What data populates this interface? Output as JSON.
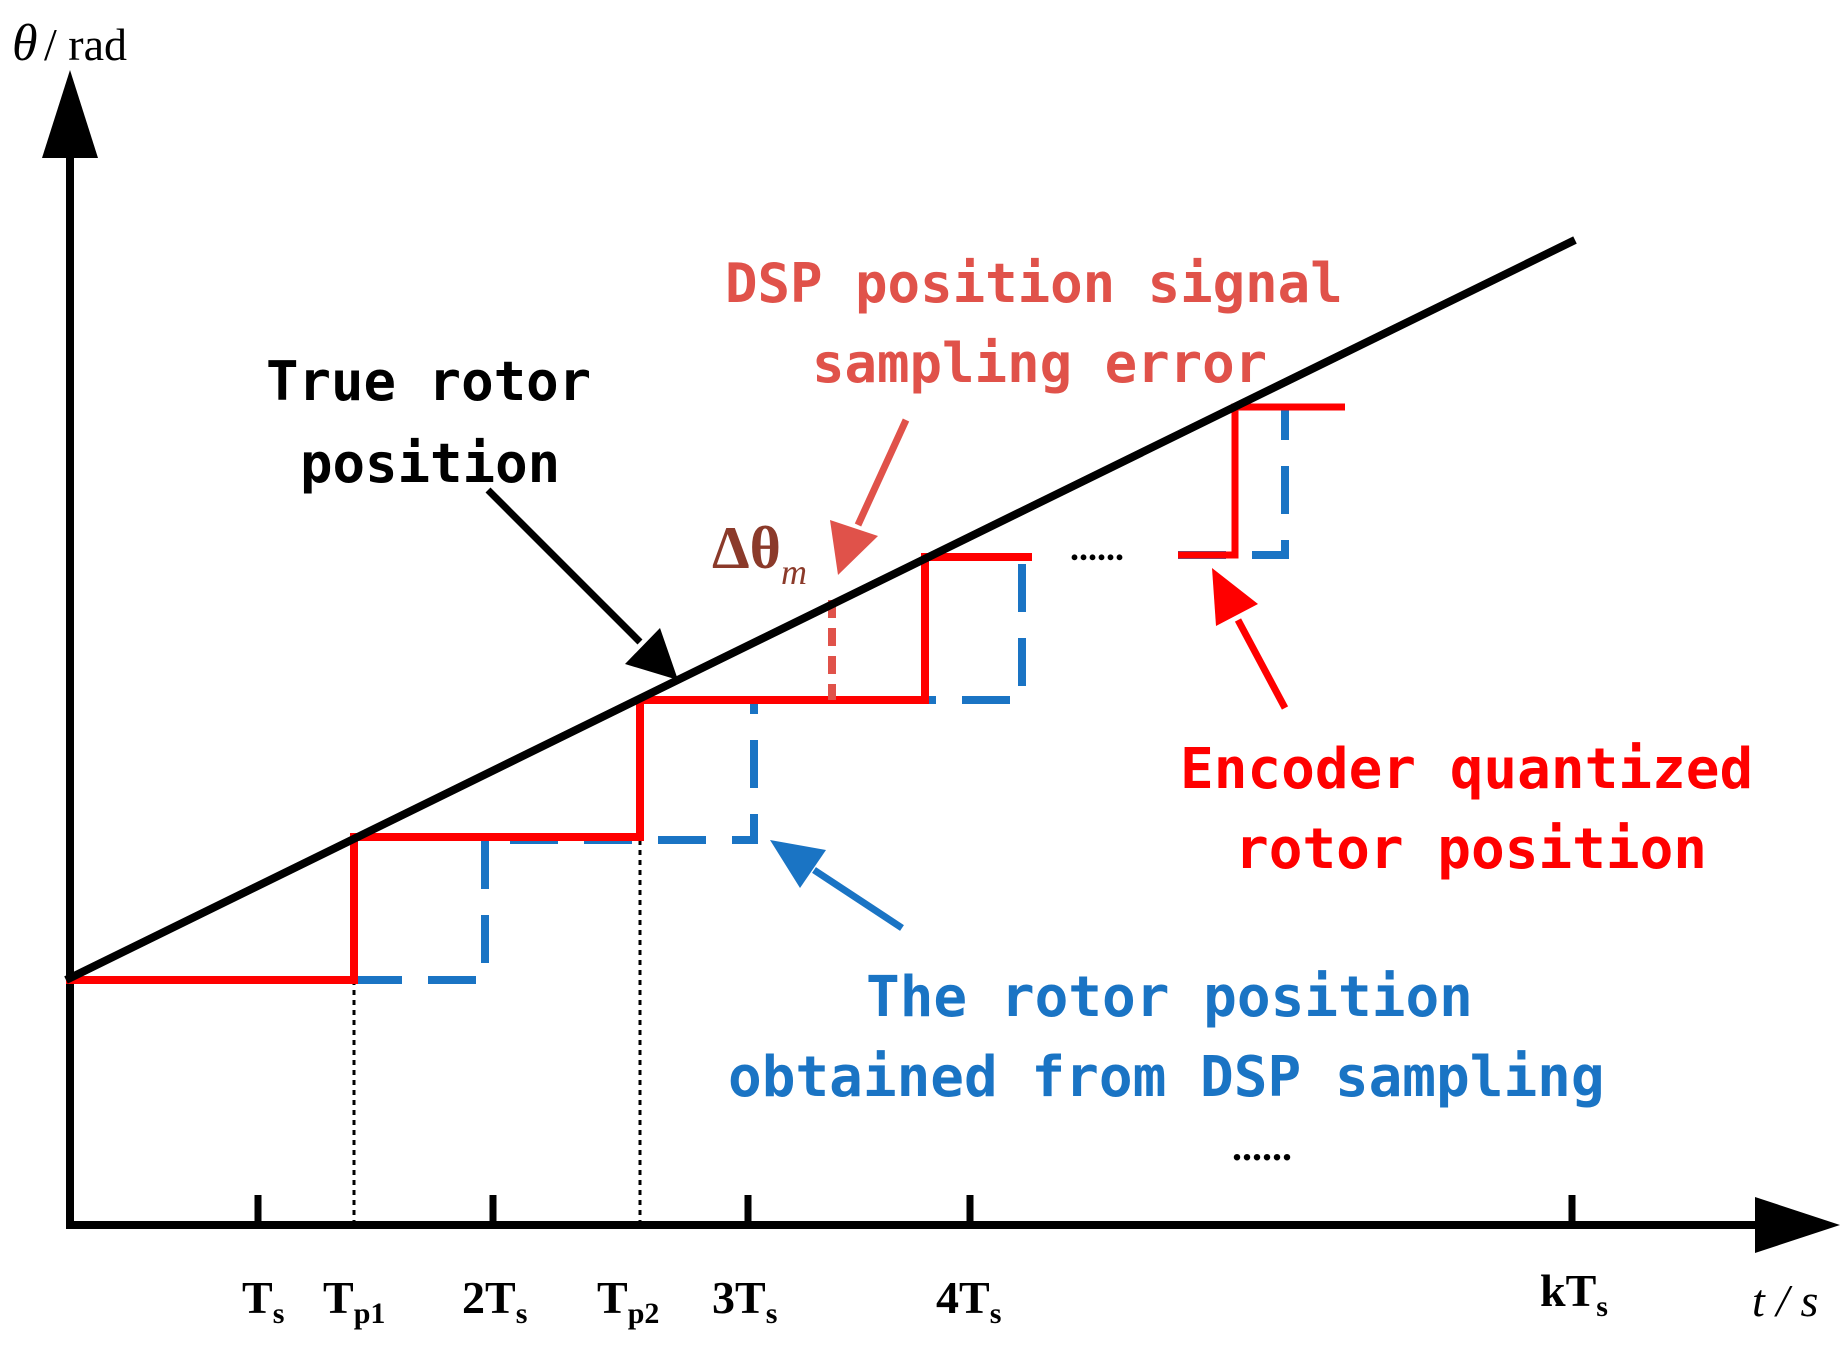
{
  "axes": {
    "y_symbol": "θ",
    "y_unit": "/ rad",
    "x_label": "t / s"
  },
  "ticks": {
    "ts_main": "T",
    "ts_sub": "s",
    "tp1_main": "T",
    "tp1_sub": "p1",
    "two_ts_main": "2T",
    "two_ts_sub": "s",
    "tp2_main": "T",
    "tp2_sub": "p2",
    "three_ts_main": "3T",
    "three_ts_sub": "s",
    "four_ts_main": "4T",
    "four_ts_sub": "s",
    "kts_main": "kT",
    "kts_sub": "s"
  },
  "labels": {
    "true_line1": "True rotor",
    "true_line2": "position",
    "dsp_err_line1": "DSP position signal",
    "dsp_err_line2": "sampling error",
    "delta_main": "Δθ",
    "delta_sub": "m",
    "encoder_line1": "Encoder quantized",
    "encoder_line2": "rotor position",
    "dsp_sample_line1": "The rotor position",
    "dsp_sample_line2": "obtained from DSP sampling",
    "ellipsis_mid": "......",
    "ellipsis_low": "......"
  },
  "colors": {
    "true_line": "#000000",
    "encoder": "#ff0000",
    "dsp_sample": "#1a74c4",
    "error_label": "#e0524a",
    "delta": "#8b3a2a"
  }
}
